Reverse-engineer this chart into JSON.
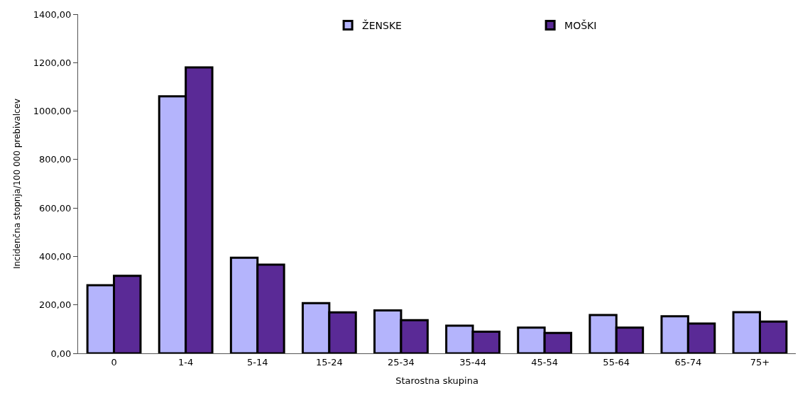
{
  "chart_data": {
    "type": "bar",
    "xlabel": "Starostna skupina",
    "ylabel": "Incidenčna stopnja/100 000 prebivalcev",
    "categories": [
      "0",
      "1-4",
      "5-14",
      "15-24",
      "25-34",
      "35-44",
      "45-54",
      "55-64",
      "65-74",
      "75+"
    ],
    "series": [
      {
        "name": "ŽENSKE",
        "color": "#b4b4fc",
        "values": [
          281,
          1061,
          395,
          207,
          177,
          114,
          106,
          158,
          153,
          170
        ]
      },
      {
        "name": "MOŠKI",
        "color": "#5a2a96",
        "values": [
          320,
          1180,
          366,
          169,
          137,
          89,
          84,
          106,
          123,
          131
        ]
      }
    ],
    "ylim": [
      0,
      1400
    ],
    "yticks": [
      {
        "value": 0,
        "label": "0,00"
      },
      {
        "value": 200,
        "label": "200,00"
      },
      {
        "value": 400,
        "label": "400,00"
      },
      {
        "value": 600,
        "label": "600,00"
      },
      {
        "value": 800,
        "label": "800,00"
      },
      {
        "value": 1000,
        "label": "1000,00"
      },
      {
        "value": 1200,
        "label": "1200,00"
      },
      {
        "value": 1400,
        "label": "1400,00"
      }
    ],
    "legend": "top right"
  }
}
